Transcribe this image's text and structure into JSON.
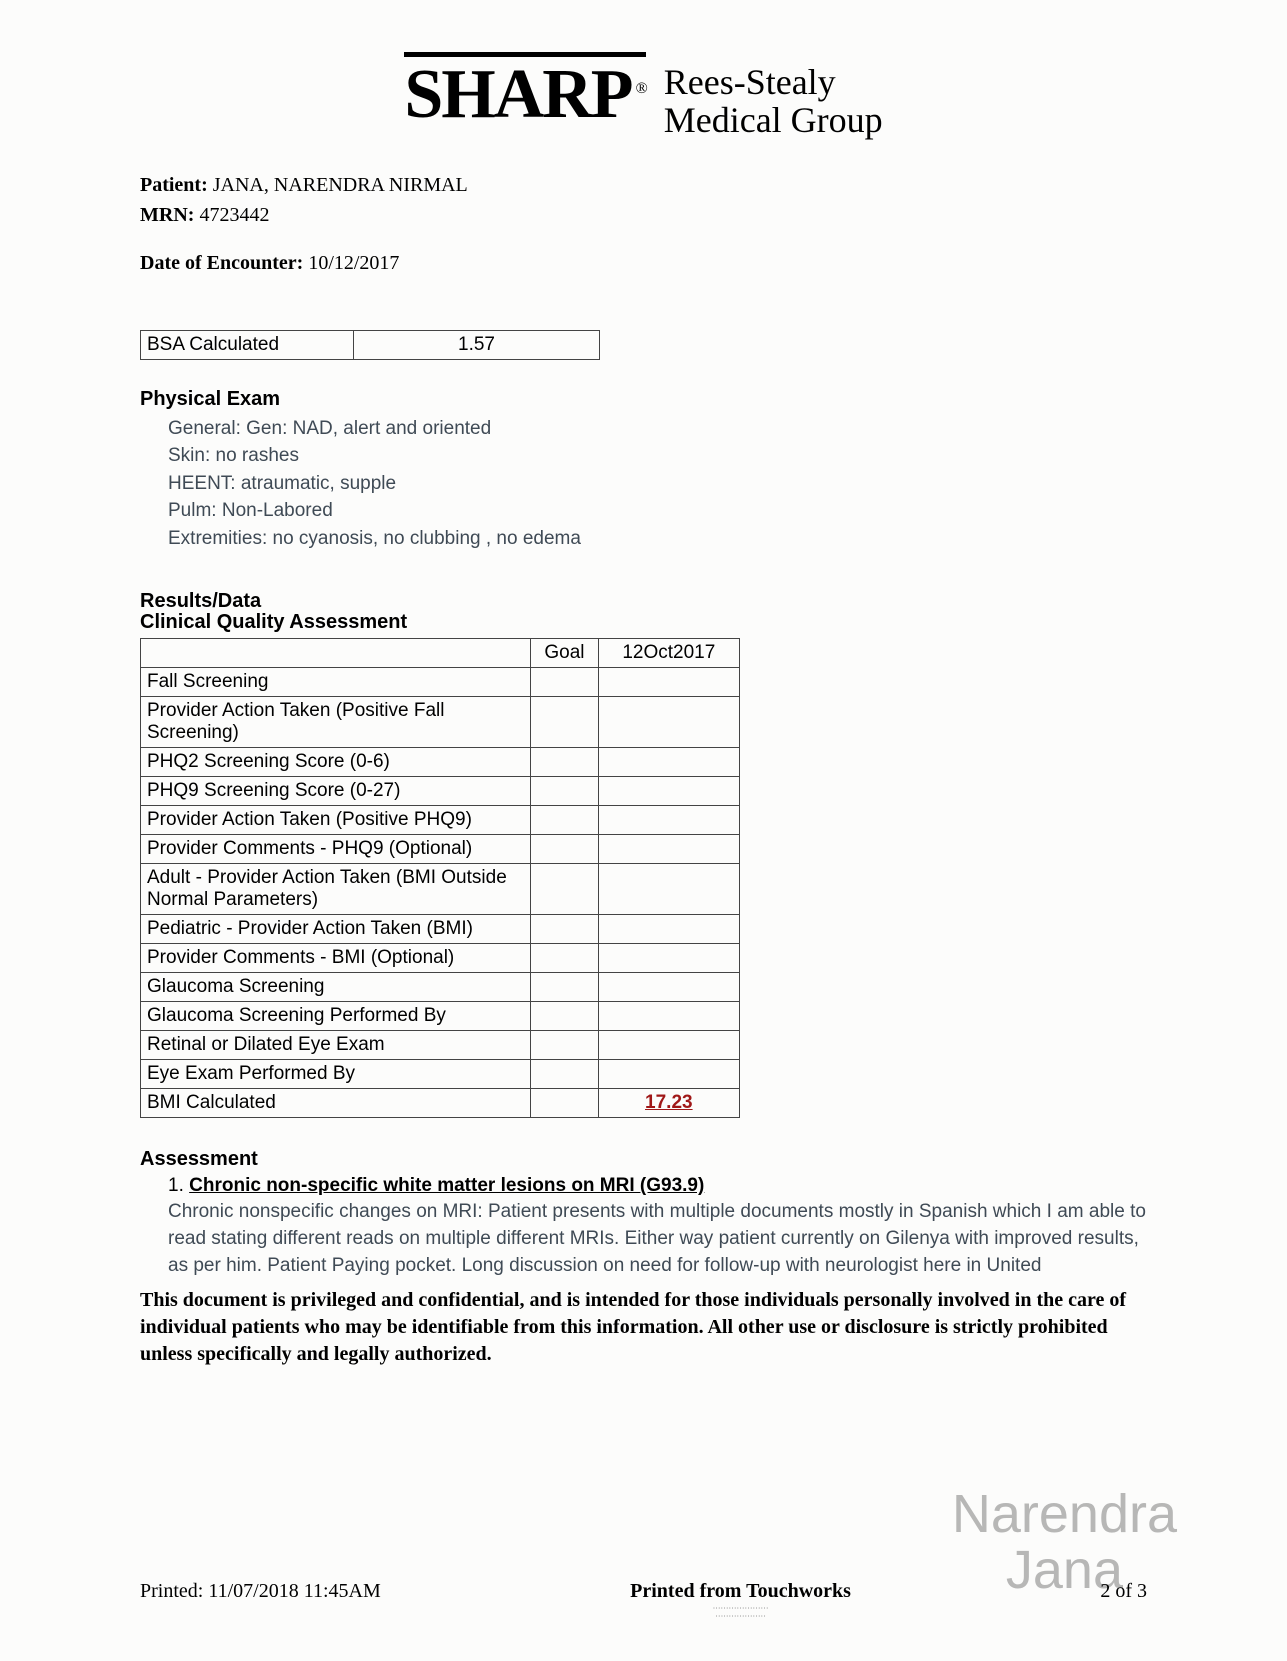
{
  "logo": {
    "brand": "SHARP",
    "reg": "®",
    "line1": "Rees-Stealy",
    "line2": "Medical Group"
  },
  "patient": {
    "label": "Patient:",
    "value": "JANA, NARENDRA NIRMAL"
  },
  "mrn": {
    "label": "MRN:",
    "value": "4723442"
  },
  "encounter": {
    "label": "Date of Encounter:",
    "value": "10/12/2017"
  },
  "bsa": {
    "label": "BSA Calculated",
    "value": "1.57"
  },
  "physical_exam": {
    "heading": "Physical Exam",
    "lines": [
      "General: Gen: NAD, alert and oriented",
      "Skin: no rashes",
      "HEENT: atraumatic, supple",
      "Pulm: Non-Labored",
      "Extremities: no cyanosis, no clubbing , no edema"
    ]
  },
  "results": {
    "heading": "Results/Data",
    "subheading": "Clinical Quality Assessment",
    "columns": [
      "",
      "Goal",
      "12Oct2017"
    ],
    "rows": [
      {
        "label": "Fall Screening",
        "goal": "",
        "val": ""
      },
      {
        "label": "Provider Action Taken (Positive Fall Screening)",
        "goal": "",
        "val": ""
      },
      {
        "label": "PHQ2 Screening Score (0-6)",
        "goal": "",
        "val": ""
      },
      {
        "label": "PHQ9 Screening Score (0-27)",
        "goal": "",
        "val": ""
      },
      {
        "label": "Provider Action Taken (Positive PHQ9)",
        "goal": "",
        "val": ""
      },
      {
        "label": "Provider Comments - PHQ9 (Optional)",
        "goal": "",
        "val": ""
      },
      {
        "label": "Adult - Provider Action Taken (BMI Outside Normal Parameters)",
        "goal": "",
        "val": ""
      },
      {
        "label": "Pediatric - Provider Action Taken (BMI)",
        "goal": "",
        "val": ""
      },
      {
        "label": "Provider Comments - BMI (Optional)",
        "goal": "",
        "val": ""
      },
      {
        "label": "Glaucoma Screening",
        "goal": "",
        "val": ""
      },
      {
        "label": "Glaucoma Screening Performed By",
        "goal": "",
        "val": ""
      },
      {
        "label": "Retinal or Dilated Eye Exam",
        "goal": "",
        "val": ""
      },
      {
        "label": "Eye Exam Performed By",
        "goal": "",
        "val": ""
      },
      {
        "label": "BMI Calculated",
        "goal": "",
        "val": "17.23",
        "hot": true
      }
    ]
  },
  "assessment": {
    "heading": "Assessment",
    "num": "1.",
    "title": " Chronic non-specific white matter lesions on MRI (G93.9)",
    "body": "Chronic nonspecific changes on MRI: Patient presents with multiple documents mostly in Spanish which I am able to read stating different reads on multiple different MRIs. Either way patient currently on Gilenya with improved results, as per him. Patient Paying pocket. Long discussion on need for follow-up with neurologist here in United"
  },
  "disclaimer": "This document is privileged and confidential, and is intended for those individuals personally involved in the care of individual patients who may be identifiable from this information. All other use or disclosure is strictly prohibited unless specifically and legally authorized.",
  "footer": {
    "printed_label": "Printed: ",
    "printed_value": "11/07/2018 11:45AM",
    "center": "Printed from Touchworks",
    "page": "2 of 3"
  },
  "watermark": {
    "line1": "Narendra",
    "line2": "Jana"
  }
}
